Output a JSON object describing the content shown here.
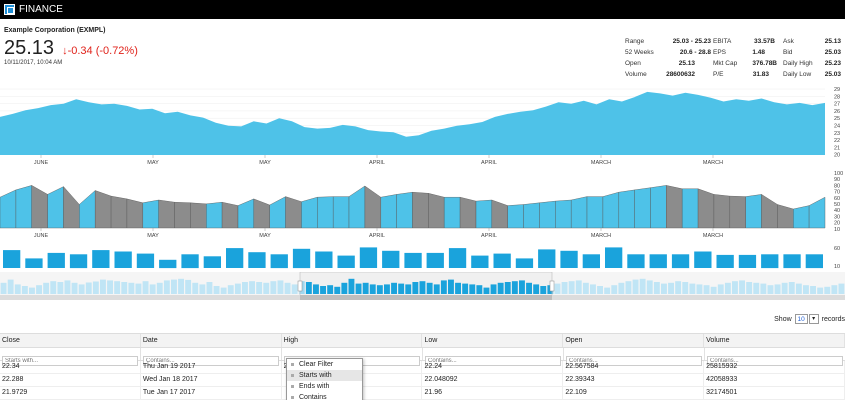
{
  "app": {
    "title": "FINANCE"
  },
  "stock": {
    "company": "Example Corporation (EXMPL)",
    "price": "25.13",
    "change": "-0.34 (-0.72%)",
    "timestamp": "10/11/2017, 10:04 AM"
  },
  "stats": [
    [
      {
        "label": "Range",
        "value": "25.03 - 25.23"
      },
      {
        "label": "52 Weeks",
        "value": "20.6 - 28.8"
      },
      {
        "label": "Open",
        "value": "25.13"
      },
      {
        "label": "Volume",
        "value": "28600632"
      }
    ],
    [
      {
        "label": "EBITA",
        "value": "33.57B"
      },
      {
        "label": "EPS",
        "value": "1.48"
      },
      {
        "label": "Mkt Cap",
        "value": "376.78B"
      },
      {
        "label": "P/E",
        "value": "31.83"
      }
    ],
    [
      {
        "label": "Ask",
        "value": "25.13"
      },
      {
        "label": "Bid",
        "value": "25.03"
      },
      {
        "label": "Daily High",
        "value": "25.23"
      },
      {
        "label": "Daily Low",
        "value": "25.03"
      }
    ]
  ],
  "colors": {
    "accent": "#4ec2e8",
    "bar": "#1aa3dc",
    "gray": "#8c8c8c",
    "negative": "#e0231b"
  },
  "chart_data": [
    {
      "type": "area",
      "x_labels": [
        "JUNE",
        "MAY",
        "MAY",
        "APRIL",
        "APRIL",
        "MARCH",
        "MARCH"
      ],
      "y_ticks": [
        "29",
        "28",
        "27",
        "26",
        "25",
        "24",
        "23",
        "22",
        "21",
        "20"
      ],
      "ylim": [
        20,
        29
      ],
      "values": [
        25.2,
        25.6,
        26.1,
        26.4,
        26.8,
        27.0,
        27.6,
        27.2,
        26.9,
        27.0,
        26.7,
        26.2,
        26.3,
        25.7,
        25.9,
        25.4,
        25.1,
        24.4,
        24.0,
        23.9,
        24.6,
        24.3,
        25.0,
        24.6,
        23.8,
        23.6,
        23.7,
        24.1,
        23.9,
        23.4,
        23.2,
        23.1,
        22.5,
        22.7,
        23.3,
        23.6,
        24.0,
        24.2,
        24.5,
        25.2,
        25.6,
        25.9,
        26.1,
        26.6,
        27.2,
        27.0,
        27.4,
        26.9,
        27.6,
        27.3,
        27.9,
        28.6,
        28.4,
        28.1,
        28.5,
        28.2,
        27.8,
        27.3,
        27.6,
        27.4,
        27.7,
        27.2,
        26.9,
        27.1,
        26.8,
        27.1
      ]
    },
    {
      "type": "area",
      "y_ticks": [
        "100",
        "90",
        "80",
        "70",
        "60",
        "50",
        "40",
        "30",
        "20",
        "10"
      ],
      "ylim": [
        0,
        100
      ],
      "x_labels": [
        "JUNE",
        "MAY",
        "MAY",
        "APRIL",
        "APRIL",
        "MARCH",
        "MARCH"
      ],
      "values": [
        55,
        68,
        76,
        60,
        74,
        42,
        67,
        57,
        52,
        45,
        50,
        46,
        45,
        43,
        46,
        40,
        52,
        41,
        56,
        47,
        55,
        56,
        56,
        75,
        55,
        60,
        64,
        62,
        55,
        55,
        48,
        50,
        40,
        42,
        45,
        48,
        50,
        56,
        56,
        64,
        68,
        72,
        76,
        70,
        70,
        60,
        57,
        56,
        60,
        42,
        34,
        40,
        55
      ]
    },
    {
      "type": "bar",
      "y_ticks": [
        "60",
        "10"
      ],
      "values": [
        26,
        14,
        22,
        20,
        26,
        24,
        21,
        12,
        20,
        17,
        29,
        23,
        20,
        28,
        24,
        18,
        30,
        25,
        22,
        22,
        29,
        18,
        21,
        14,
        27,
        25,
        20,
        30,
        20,
        20,
        20,
        24,
        19,
        19,
        20,
        20,
        20
      ]
    }
  ],
  "navigator": {
    "values": [
      70,
      90,
      60,
      50,
      40,
      55,
      70,
      80,
      75,
      85,
      70,
      60,
      72,
      78,
      90,
      85,
      80,
      75,
      70,
      65,
      80,
      60,
      70,
      85,
      90,
      95,
      88,
      70,
      60,
      75,
      50,
      40,
      55,
      65,
      75,
      80,
      75,
      70,
      80,
      85,
      70,
      60,
      80,
      75,
      60,
      50,
      55,
      45,
      70,
      95,
      65,
      70,
      60,
      55,
      60,
      70,
      65,
      60,
      75,
      80,
      70,
      60,
      85,
      90,
      70,
      65,
      60,
      55,
      40,
      60,
      70,
      75,
      80,
      85,
      70,
      60,
      50,
      55,
      65,
      75,
      80,
      85,
      70,
      60,
      50,
      40,
      55,
      70,
      80,
      90,
      95,
      85,
      75,
      65,
      70,
      80,
      75,
      65,
      60,
      55,
      45,
      60,
      70,
      80,
      85,
      75,
      70,
      65,
      55,
      60,
      70,
      75,
      65,
      55,
      50,
      40,
      45,
      55,
      65
    ]
  },
  "pager": {
    "show_label": "Show",
    "page_size": "10",
    "records_label": "records"
  },
  "grid": {
    "columns": [
      "Close",
      "Date",
      "High",
      "Low",
      "Open",
      "Volume"
    ],
    "filters": [
      "Starts with...",
      "Contains...",
      "Starts with...",
      "Contains...",
      "Contains...",
      "Contains..."
    ],
    "rows": [
      [
        "22.34",
        "Thu Jan 19 2017",
        "22.24",
        "22.24",
        "22.567584",
        "25815932"
      ],
      [
        "22.288",
        "Wed Jan 18 2017",
        "",
        "22.048092",
        "22.39343",
        "42058933"
      ],
      [
        "21.9729",
        "Tue Jan 17 2017",
        "",
        "21.96",
        "22.109",
        "32174501"
      ]
    ]
  },
  "filter_menu": {
    "items": [
      "Clear Filter",
      "Starts with",
      "Ends with",
      "Contains"
    ]
  }
}
